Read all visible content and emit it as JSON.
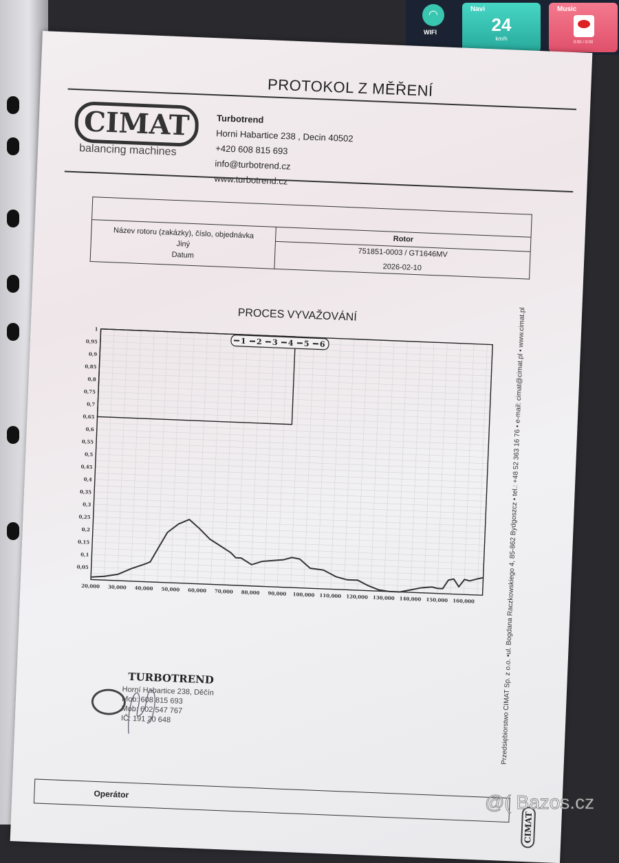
{
  "background": {
    "car_screen": {
      "wifi_label": "WIFI",
      "navi_label": "Navi",
      "speed": "24",
      "speed_unit": "km/h",
      "music_label": "Music",
      "music_time": "0:00 / 0:00"
    }
  },
  "document": {
    "title": "PROTOKOL Z MĚŘENÍ",
    "logo": {
      "name": "CIMAT",
      "tagline": "balancing machines"
    },
    "company": {
      "name": "Turbotrend",
      "address": "Horni Habartice 238 , Decin 40502",
      "phone": "+420 608 815 693",
      "email": "info@turbotrend.cz",
      "web": "www.turbotrend.cz"
    },
    "info_table": {
      "left_labels": [
        "Název rotoru (zakázky), číslo, objednávka",
        "Jiný",
        "Datum"
      ],
      "rotor_header": "Rotor",
      "rotor_value": "751851-0003 / GT1646MV",
      "date_value": "2026-02-10"
    },
    "chart_title": "PROCES VYVAŽOVÁNÍ",
    "stamp": {
      "name": "TURBOTREND",
      "lines": [
        "Horní Habartice 238, Děčín",
        "Mob: 608 815 693",
        "Mob: 602 547 767",
        "IČ: 191 20 648"
      ]
    },
    "operator_label": "Operátor",
    "side_footer": "Przedsiębiorstwo CIMAT Sp. z o.o. •ul. Bogdana Raczkowskiego 4, 85-862 Bydgoszcz • tel.: +48 52 363 16 76 • e-mail: cimat@cimat.pl • www.cimat.pl",
    "side_logo": "CIMAT"
  },
  "watermark": "@( Bazos.cz",
  "chart_data": {
    "type": "line",
    "title": "PROCES VYVAŽOVÁNÍ",
    "legend": [
      "1",
      "2",
      "3",
      "4",
      "5",
      "6"
    ],
    "legend_placement": "top-center",
    "grid": true,
    "xlim": [
      20000,
      167000
    ],
    "ylim": [
      0,
      1
    ],
    "x_ticks": [
      "20,000",
      "30,000",
      "40,000",
      "50,000",
      "60,000",
      "70,000",
      "80,000",
      "90,000",
      "100,000",
      "110,000",
      "120,000",
      "130,000",
      "140,000",
      "150,000",
      "160,000"
    ],
    "y_ticks": [
      "0,05",
      "0,1",
      "0,15",
      "0,2",
      "0,25",
      "0,3",
      "0,35",
      "0,4",
      "0,45",
      "0,5",
      "0,55",
      "0,6",
      "0,65",
      "0,7",
      "0,75",
      "0,8",
      "0,85",
      "0,9",
      "0,95",
      "1"
    ],
    "series": [
      {
        "x": [
          20000,
          25000,
          30000,
          35000,
          40000,
          42000,
          45000,
          48000,
          52000,
          56000,
          60000,
          64000,
          68000,
          72000,
          74000,
          76000,
          80000,
          84000,
          88000,
          92000,
          95000,
          98000,
          102000,
          107000,
          112000,
          116000,
          120000,
          124000,
          128000,
          132000,
          136000,
          140000,
          144000,
          148000,
          150000,
          152000,
          154000,
          156000,
          158000,
          160000,
          162000,
          165000,
          167000
        ],
        "y": [
          0.01,
          0.015,
          0.025,
          0.05,
          0.07,
          0.08,
          0.14,
          0.2,
          0.235,
          0.255,
          0.22,
          0.18,
          0.155,
          0.13,
          0.11,
          0.11,
          0.085,
          0.1,
          0.105,
          0.11,
          0.12,
          0.115,
          0.08,
          0.075,
          0.05,
          0.04,
          0.04,
          0.02,
          0.005,
          0,
          0,
          0.01,
          0.02,
          0.025,
          0.02,
          0.02,
          0.055,
          0.06,
          0.03,
          0.06,
          0.055,
          0.065,
          0.07
        ]
      }
    ]
  }
}
